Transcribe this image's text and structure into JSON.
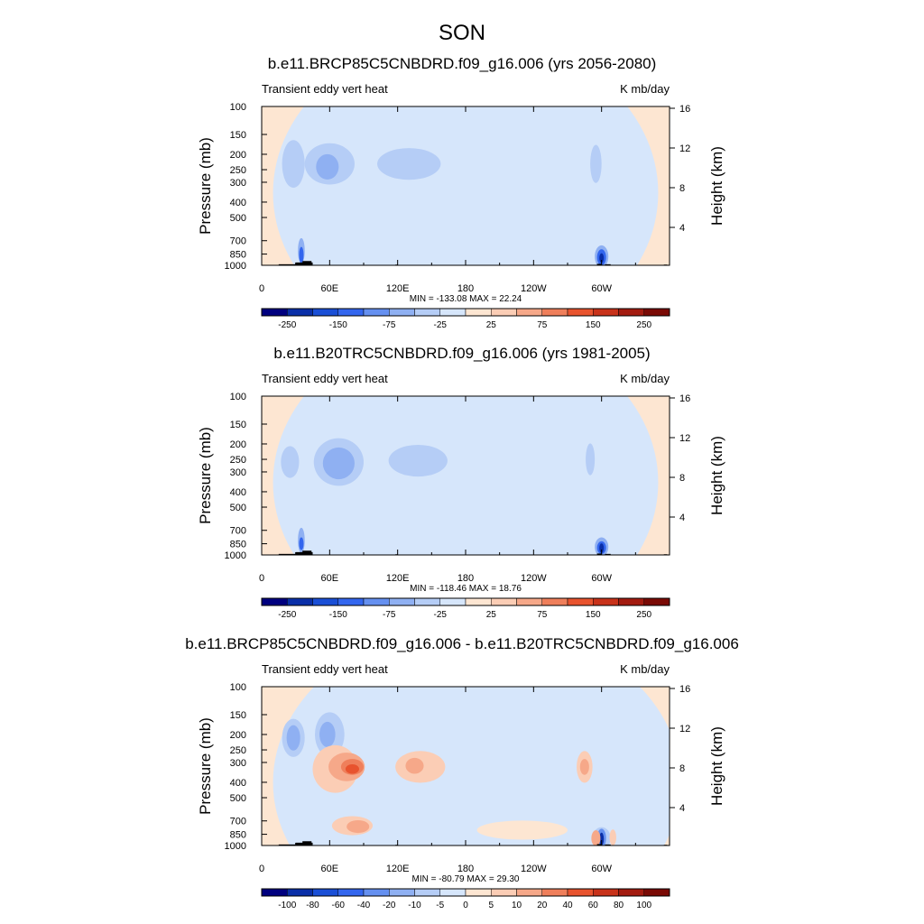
{
  "figure": {
    "title": "SON"
  },
  "chart_data": [
    {
      "type": "heatmap",
      "title": "b.e11.BRCP85C5CNBDRD.f09_g16.006 (yrs 2056-2080)",
      "left_label": "Transient eddy vert heat",
      "right_label": "K mb/day",
      "ylabel": "Pressure (mb)",
      "ylabel_right": "Height (km)",
      "xticks": [
        "0",
        "60E",
        "120E",
        "180",
        "120W",
        "60W"
      ],
      "yticks": [
        "100",
        "150",
        "200",
        "250",
        "300",
        "400",
        "500",
        "700",
        "850",
        "1000"
      ],
      "right_ticks": [
        "16",
        "12",
        "8",
        "4"
      ],
      "stats": "MIN = -133.08  MAX =  22.24",
      "colorbar": [
        "-250",
        "-150",
        "-75",
        "-25",
        "25",
        "75",
        "150",
        "250"
      ],
      "colorbar_levels": 16,
      "xlim": [
        0,
        360
      ],
      "ylim": [
        1000,
        100
      ],
      "min": -133.08,
      "max": 22.24
    },
    {
      "type": "heatmap",
      "title": "b.e11.B20TRC5CNBDRD.f09_g16.006 (yrs 1981-2005)",
      "left_label": "Transient eddy vert heat",
      "right_label": "K mb/day",
      "ylabel": "Pressure (mb)",
      "ylabel_right": "Height (km)",
      "xticks": [
        "0",
        "60E",
        "120E",
        "180",
        "120W",
        "60W"
      ],
      "yticks": [
        "100",
        "150",
        "200",
        "250",
        "300",
        "400",
        "500",
        "700",
        "850",
        "1000"
      ],
      "right_ticks": [
        "16",
        "12",
        "8",
        "4"
      ],
      "stats": "MIN = -118.46  MAX =  18.76",
      "colorbar": [
        "-250",
        "-150",
        "-75",
        "-25",
        "25",
        "75",
        "150",
        "250"
      ],
      "colorbar_levels": 16,
      "xlim": [
        0,
        360
      ],
      "ylim": [
        1000,
        100
      ],
      "min": -118.46,
      "max": 18.76
    },
    {
      "type": "heatmap",
      "title": "b.e11.BRCP85C5CNBDRD.f09_g16.006 - b.e11.B20TRC5CNBDRD.f09_g16.006",
      "left_label": "Transient eddy vert heat",
      "right_label": "K mb/day",
      "ylabel": "Pressure (mb)",
      "ylabel_right": "Height (km)",
      "xticks": [
        "0",
        "60E",
        "120E",
        "180",
        "120W",
        "60W"
      ],
      "yticks": [
        "100",
        "150",
        "200",
        "250",
        "300",
        "400",
        "500",
        "700",
        "850",
        "1000"
      ],
      "right_ticks": [
        "16",
        "12",
        "8",
        "4"
      ],
      "stats": "MIN = -80.79  MAX =  29.30",
      "colorbar": [
        "-100",
        "-80",
        "-60",
        "-40",
        "-20",
        "-10",
        "-5",
        "0",
        "5",
        "10",
        "20",
        "40",
        "60",
        "80",
        "100"
      ],
      "colorbar_levels": 16,
      "xlim": [
        0,
        360
      ],
      "ylim": [
        1000,
        100
      ],
      "min": -80.79,
      "max": 29.3
    }
  ],
  "colors": {
    "palette": [
      "#00007f",
      "#0a2fa8",
      "#1a4fd6",
      "#3366ee",
      "#6590f0",
      "#8fb0f2",
      "#b5cdf6",
      "#d6e6fb",
      "#fde6d2",
      "#fbcdb5",
      "#f6a889",
      "#ef7f5b",
      "#e8532e",
      "#c8321a",
      "#a31b10",
      "#7a0a05"
    ],
    "background": "#fde6d2",
    "mountain": "#000000"
  }
}
